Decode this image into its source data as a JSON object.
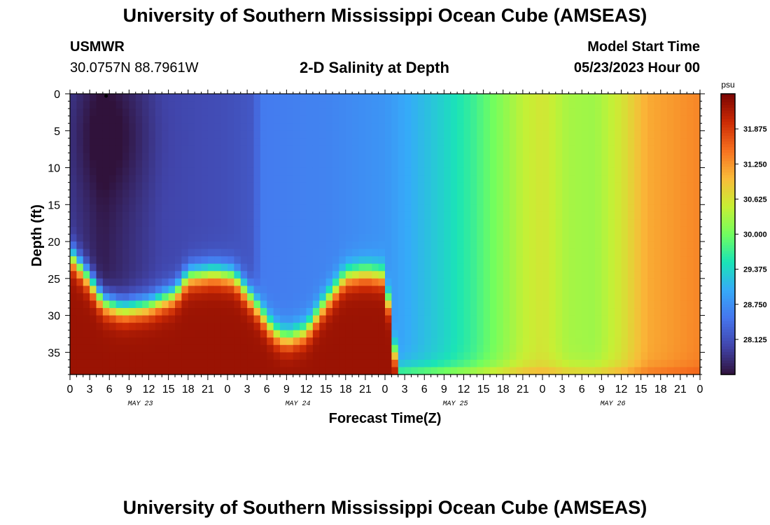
{
  "page": {
    "title": "University of Southern Mississippi Ocean Cube (AMSEAS)",
    "footer_title": "University of Southern Mississippi Ocean Cube (AMSEAS)"
  },
  "station": {
    "id": "USMWR",
    "coords": "30.0757N  88.7961W"
  },
  "model": {
    "label": "Model Start Time",
    "start": "05/23/2023 Hour 00"
  },
  "chart_data": {
    "type": "heatmap",
    "title": "2-D Salinity at Depth",
    "xlabel": "Forecast Time(Z)",
    "ylabel": "Depth (ft)",
    "units": "psu",
    "x_range_hours": [
      0,
      96
    ],
    "y_range_ft": [
      0,
      38
    ],
    "x_tick_labels": [
      "0",
      "3",
      "6",
      "9",
      "12",
      "15",
      "18",
      "21",
      "0",
      "3",
      "6",
      "9",
      "12",
      "15",
      "18",
      "21",
      "0",
      "3",
      "6",
      "9",
      "12",
      "15",
      "18",
      "21",
      "0",
      "3",
      "6",
      "9",
      "12",
      "15",
      "18",
      "21",
      "0"
    ],
    "day_labels": [
      "MAY 23",
      "MAY 24",
      "MAY 25",
      "MAY 26"
    ],
    "y_ticks": [
      0,
      5,
      10,
      15,
      20,
      25,
      30,
      35
    ],
    "colorbar": {
      "range": [
        27.5,
        32.5
      ],
      "tick_labels": [
        "31.875",
        "31.250",
        "30.625",
        "30.000",
        "29.375",
        "28.750",
        "28.125"
      ],
      "tick_values": [
        31.875,
        31.25,
        30.625,
        30.0,
        29.375,
        28.75,
        28.125
      ]
    },
    "surface_salinity_psu": [
      [
        0,
        27.9
      ],
      [
        5,
        27.6
      ],
      [
        14,
        28.0
      ],
      [
        24,
        28.1
      ],
      [
        28,
        28.2
      ],
      [
        29,
        28.55
      ],
      [
        40,
        28.65
      ],
      [
        48,
        28.8
      ],
      [
        53,
        29.1
      ],
      [
        57,
        29.35
      ],
      [
        61,
        29.65
      ],
      [
        65,
        30.05
      ],
      [
        69,
        30.45
      ],
      [
        72,
        30.6
      ],
      [
        76,
        30.3
      ],
      [
        80,
        30.25
      ],
      [
        84,
        30.6
      ],
      [
        88,
        31.1
      ],
      [
        96,
        31.35
      ]
    ],
    "bottom_layer_top_ft": [
      [
        0,
        20.5
      ],
      [
        3,
        24
      ],
      [
        5,
        27
      ],
      [
        8,
        28
      ],
      [
        12,
        27.5
      ],
      [
        16,
        26
      ],
      [
        18,
        23.5
      ],
      [
        22,
        23
      ],
      [
        25,
        23.5
      ],
      [
        28,
        27
      ],
      [
        31,
        31
      ],
      [
        33,
        32
      ],
      [
        36,
        31
      ],
      [
        39,
        27
      ],
      [
        42,
        23.5
      ],
      [
        45,
        23
      ],
      [
        48,
        23.5
      ],
      [
        50,
        37.5
      ],
      [
        96,
        37.5
      ]
    ],
    "bottom_layer_salinity_psu": 32.3,
    "marker": {
      "time_hour": 5.5,
      "depth_ft": 0.2
    }
  }
}
